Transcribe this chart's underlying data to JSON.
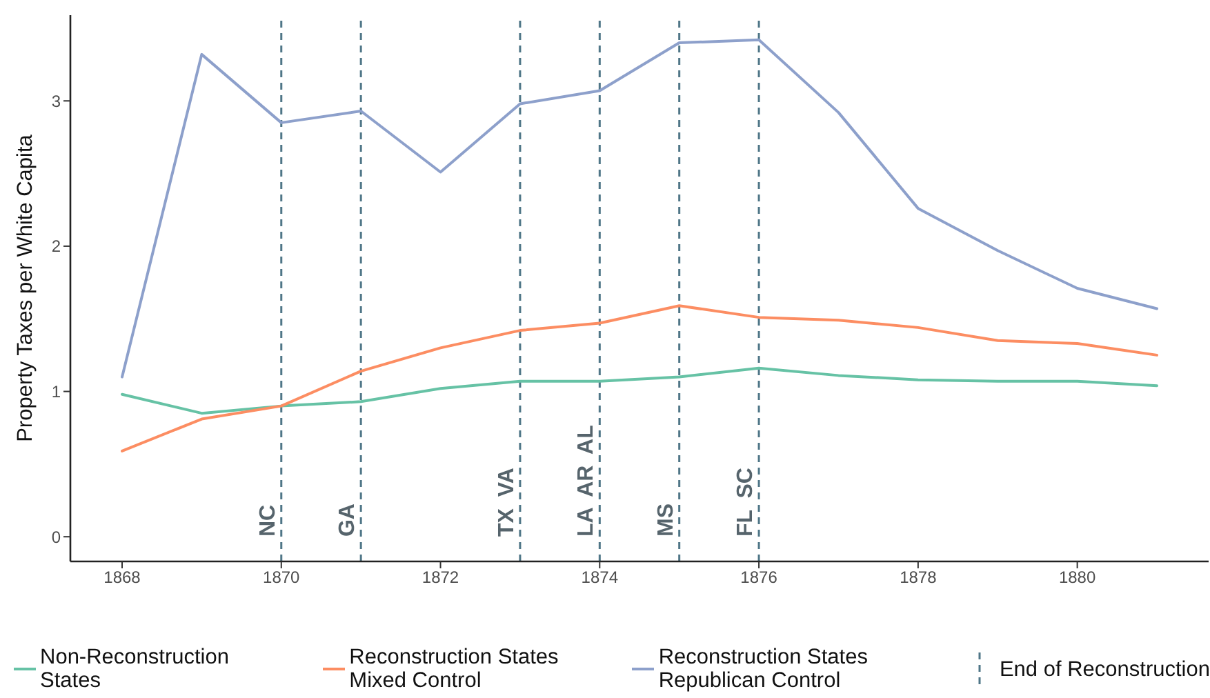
{
  "chart_data": {
    "type": "line",
    "ylabel": "Property Taxes per White Capita",
    "x": [
      1868,
      1869,
      1870,
      1871,
      1872,
      1873,
      1874,
      1875,
      1876,
      1877,
      1878,
      1879,
      1880,
      1881
    ],
    "series": [
      {
        "name": "Non-Reconstruction States",
        "color": "#66c2a5",
        "values": [
          0.98,
          0.85,
          0.9,
          0.93,
          1.02,
          1.07,
          1.07,
          1.1,
          1.16,
          1.11,
          1.08,
          1.07,
          1.07,
          1.04
        ]
      },
      {
        "name": "Reconstruction States Mixed Control",
        "color": "#fc8d62",
        "values": [
          0.59,
          0.81,
          0.9,
          1.14,
          1.3,
          1.42,
          1.47,
          1.59,
          1.51,
          1.49,
          1.44,
          1.35,
          1.33,
          1.25
        ]
      },
      {
        "name": "Reconstruction States Republican Control",
        "color": "#8da0cb",
        "values": [
          1.1,
          3.32,
          2.85,
          2.93,
          2.51,
          2.98,
          3.07,
          3.4,
          3.42,
          2.92,
          2.26,
          1.97,
          1.71,
          1.57
        ]
      }
    ],
    "xlim": [
      1867.35,
      1881.65
    ],
    "xticks": [
      1868,
      1870,
      1872,
      1874,
      1876,
      1878,
      1880
    ],
    "ylim": [
      -0.17,
      3.59
    ],
    "yticks": [
      0,
      1,
      2,
      3
    ],
    "ref_lines": [
      {
        "axis": "x",
        "value": 1870,
        "label": "NC",
        "color": "#4f7687",
        "line_style": "dashed"
      },
      {
        "axis": "x",
        "value": 1871,
        "label": "GA",
        "color": "#4f7687",
        "line_style": "dashed"
      },
      {
        "axis": "x",
        "value": 1873,
        "label": "TX VA",
        "color": "#4f7687",
        "line_style": "dashed"
      },
      {
        "axis": "x",
        "value": 1874,
        "label": "LA AR AL",
        "color": "#4f7687",
        "line_style": "dashed"
      },
      {
        "axis": "x",
        "value": 1875,
        "label": "MS",
        "color": "#4f7687",
        "line_style": "dashed"
      },
      {
        "axis": "x",
        "value": 1876,
        "label": "FL SC",
        "color": "#4f7687",
        "line_style": "dashed"
      }
    ],
    "annotations": [
      "End of Reconstruction"
    ],
    "legend": "bottom"
  }
}
